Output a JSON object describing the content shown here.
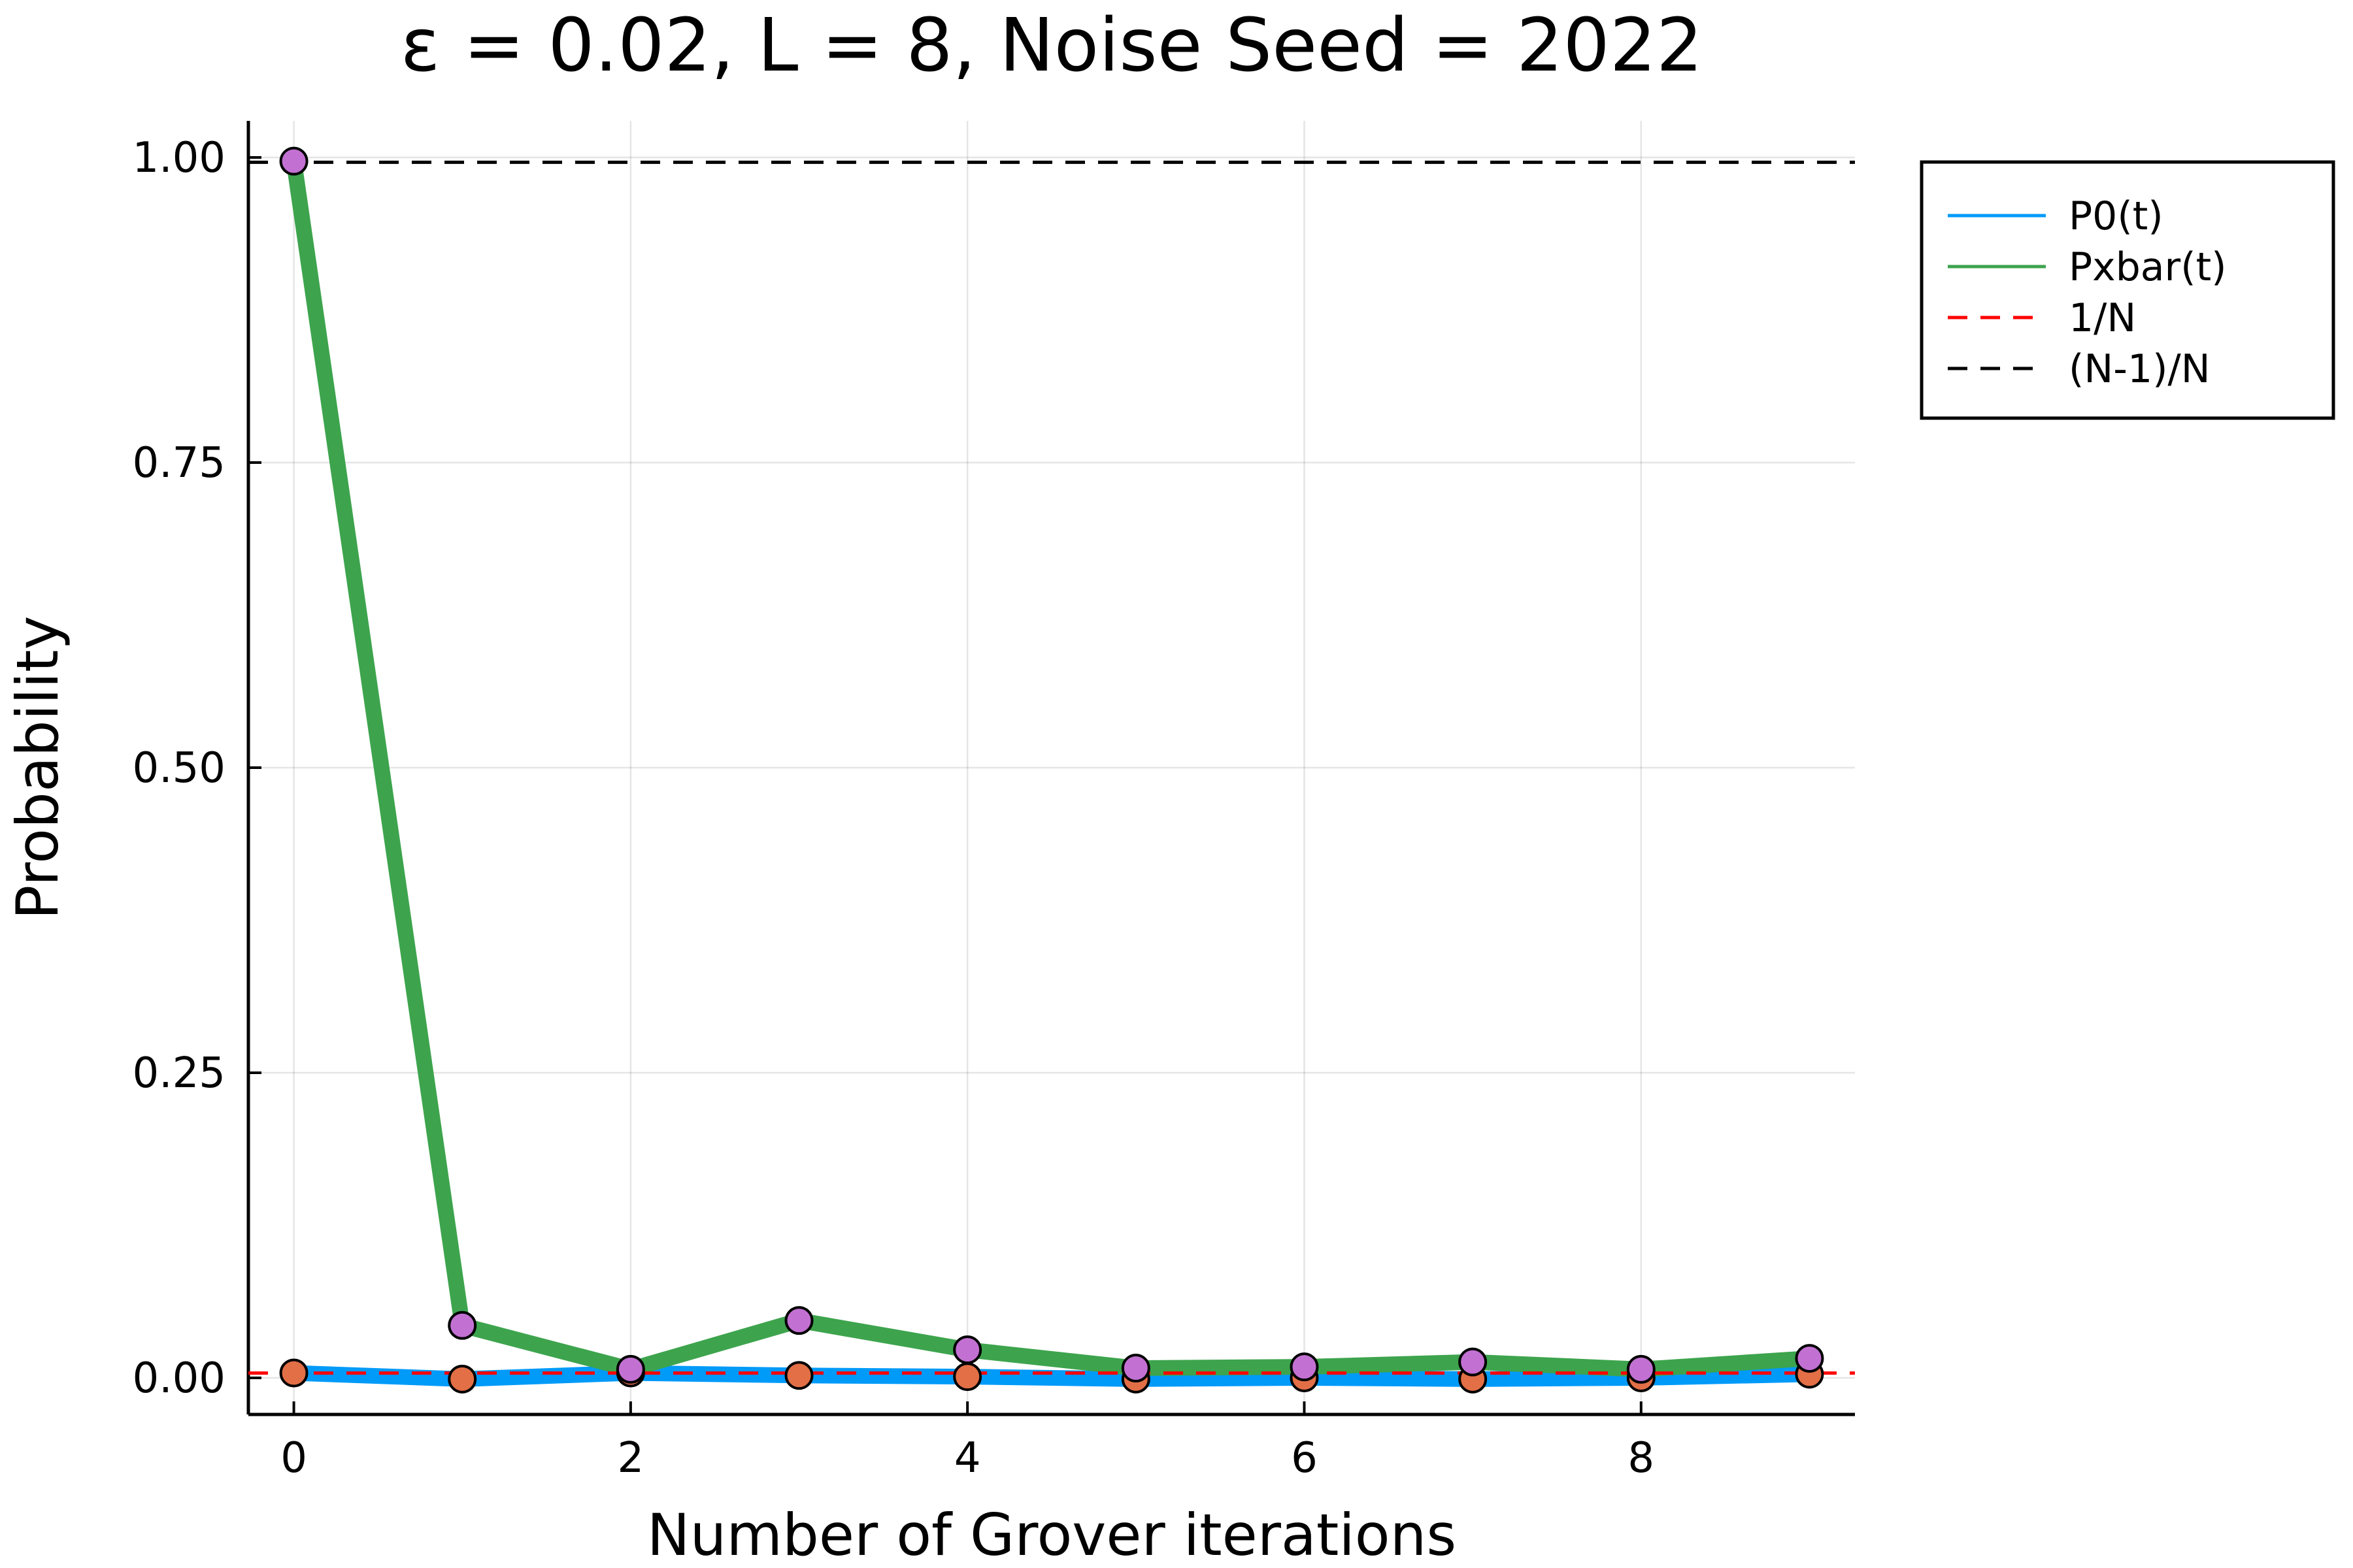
{
  "chart_data": {
    "type": "line",
    "title": "ε = 0.02, L = 8, Noise Seed = 2022",
    "xlabel": "Number of Grover iterations",
    "ylabel": "Probability",
    "xlim": [
      -0.27,
      9.27
    ],
    "ylim": [
      -0.03,
      1.03
    ],
    "x_ticks": [
      0,
      2,
      4,
      6,
      8
    ],
    "x_tick_labels": [
      "0",
      "2",
      "4",
      "6",
      "8"
    ],
    "y_ticks": [
      0.0,
      0.25,
      0.5,
      0.75,
      1.0
    ],
    "y_tick_labels": [
      "0.00",
      "0.25",
      "0.50",
      "0.75",
      "1.00"
    ],
    "grid": true,
    "legend_position": "outer-top-right",
    "x": [
      0,
      1,
      2,
      3,
      4,
      5,
      6,
      7,
      8,
      9
    ],
    "series": [
      {
        "name": "P0(t)",
        "color": "#009af9",
        "marker_color": "#e26f46",
        "values": [
          0.004,
          -0.001,
          0.004,
          0.002,
          0.001,
          -0.001,
          0.0,
          -0.001,
          0.0,
          0.003
        ]
      },
      {
        "name": "Pxbar(t)",
        "color": "#3da44d",
        "marker_color": "#c271d2",
        "values": [
          0.997,
          0.043,
          0.007,
          0.047,
          0.023,
          0.008,
          0.009,
          0.013,
          0.007,
          0.016
        ]
      }
    ],
    "reference_lines": [
      {
        "name": "1/N",
        "y": 0.00390625,
        "color": "#ff0000",
        "style": "dashed"
      },
      {
        "name": "(N-1)/N",
        "y": 0.99609375,
        "color": "#000000",
        "style": "dashed"
      }
    ]
  }
}
